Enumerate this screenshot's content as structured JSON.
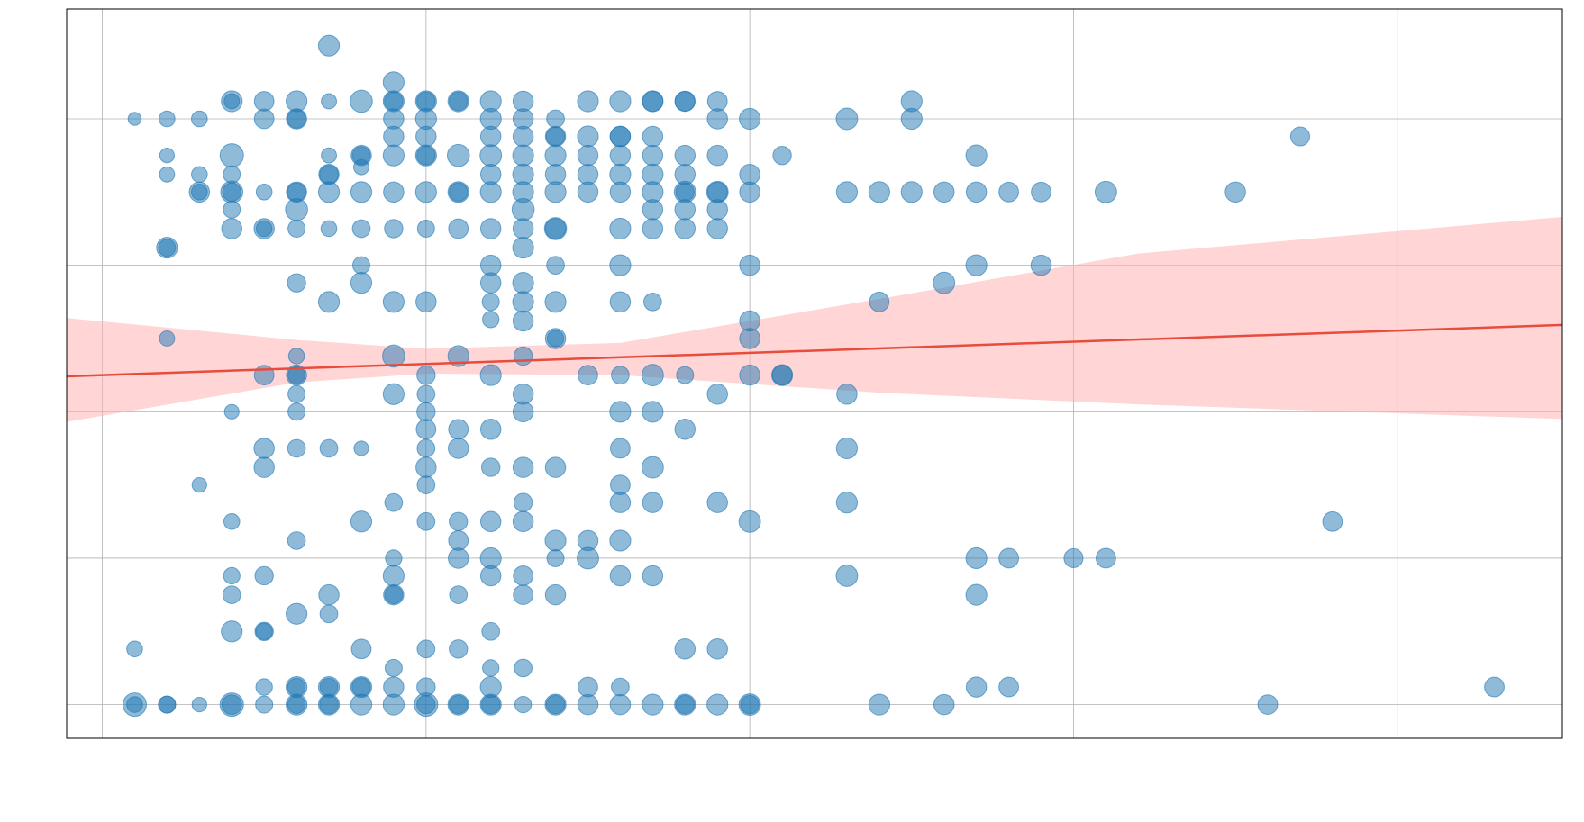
{
  "chart_data": {
    "type": "scatter",
    "title": "",
    "xlabel": "",
    "ylabel": "",
    "xlim": [
      -0.55,
      22.55
    ],
    "ylim": [
      -0.23,
      4.75
    ],
    "x_gridlines": [
      0,
      5,
      10,
      15,
      20
    ],
    "y_gridlines": [
      0,
      1,
      2,
      3,
      4
    ],
    "grid": true,
    "legend": "none",
    "colors": {
      "points": "#1f77b4",
      "point_outline": "#1f77b4",
      "regression_line": "#e74c3c",
      "confidence_band": "#ffb3b3",
      "overlap_point": "#4a6a9a"
    },
    "regression": {
      "intercept": 2.25,
      "slope": 0.0152,
      "band_lower": [
        [
          -0.55,
          1.93
        ],
        [
          3,
          2.2
        ],
        [
          5,
          2.26
        ],
        [
          8,
          2.25
        ],
        [
          12,
          2.13
        ],
        [
          16,
          2.05
        ],
        [
          22.55,
          1.95
        ]
      ],
      "band_upper": [
        [
          -0.55,
          2.64
        ],
        [
          3,
          2.49
        ],
        [
          5,
          2.43
        ],
        [
          8,
          2.47
        ],
        [
          12,
          2.77
        ],
        [
          16,
          3.08
        ],
        [
          22.55,
          3.33
        ]
      ]
    },
    "points": [
      [
        0.5,
        4.0,
        0.18
      ],
      [
        0.5,
        0.0,
        1.0
      ],
      [
        0.5,
        0.0,
        0.4
      ],
      [
        0.5,
        0.38,
        0.4
      ],
      [
        1.0,
        4.0,
        0.4
      ],
      [
        1.0,
        3.75,
        0.3
      ],
      [
        1.0,
        3.62,
        0.35
      ],
      [
        1.0,
        3.12,
        0.8
      ],
      [
        1.0,
        3.12,
        0.5
      ],
      [
        1.0,
        2.5,
        0.35
      ],
      [
        1.0,
        0.0,
        0.5
      ],
      [
        1.0,
        0.0,
        0.5
      ],
      [
        1.5,
        4.0,
        0.4
      ],
      [
        1.5,
        3.62,
        0.4
      ],
      [
        1.5,
        3.5,
        0.75
      ],
      [
        1.5,
        3.5,
        0.4
      ],
      [
        1.5,
        1.5,
        0.3
      ],
      [
        1.5,
        0.0,
        0.3
      ],
      [
        2.0,
        4.12,
        0.8
      ],
      [
        2.0,
        4.12,
        0.35
      ],
      [
        2.0,
        3.75,
        1.0
      ],
      [
        2.0,
        3.62,
        0.5
      ],
      [
        2.0,
        3.5,
        0.9
      ],
      [
        2.0,
        3.5,
        0.6
      ],
      [
        2.0,
        3.38,
        0.5
      ],
      [
        2.0,
        3.25,
        0.75
      ],
      [
        2.0,
        2.0,
        0.3
      ],
      [
        2.0,
        1.25,
        0.4
      ],
      [
        2.0,
        0.88,
        0.45
      ],
      [
        2.0,
        0.75,
        0.55
      ],
      [
        2.0,
        0.5,
        0.8
      ],
      [
        2.0,
        0.0,
        1.0
      ],
      [
        2.0,
        0.0,
        0.7
      ],
      [
        2.5,
        4.12,
        0.7
      ],
      [
        2.5,
        4.0,
        0.7
      ],
      [
        2.5,
        3.5,
        0.4
      ],
      [
        2.5,
        3.25,
        0.75
      ],
      [
        2.5,
        3.25,
        0.4
      ],
      [
        2.5,
        2.25,
        0.7
      ],
      [
        2.5,
        1.75,
        0.75
      ],
      [
        2.5,
        1.62,
        0.75
      ],
      [
        2.5,
        0.88,
        0.6
      ],
      [
        2.5,
        0.5,
        0.6
      ],
      [
        2.5,
        0.5,
        0.45
      ],
      [
        2.5,
        0.12,
        0.45
      ],
      [
        2.5,
        0.0,
        0.5
      ],
      [
        3.0,
        4.12,
        0.8
      ],
      [
        3.0,
        4.0,
        0.75
      ],
      [
        3.0,
        4.0,
        0.6
      ],
      [
        3.0,
        3.5,
        0.75
      ],
      [
        3.0,
        3.5,
        0.6
      ],
      [
        3.0,
        3.38,
        0.9
      ],
      [
        3.0,
        3.25,
        0.5
      ],
      [
        3.0,
        2.88,
        0.6
      ],
      [
        3.0,
        2.38,
        0.4
      ],
      [
        3.0,
        2.25,
        0.75
      ],
      [
        3.0,
        2.25,
        0.5
      ],
      [
        3.0,
        2.12,
        0.5
      ],
      [
        3.0,
        2.0,
        0.5
      ],
      [
        3.0,
        1.75,
        0.55
      ],
      [
        3.0,
        1.12,
        0.55
      ],
      [
        3.0,
        0.62,
        0.8
      ],
      [
        3.0,
        0.12,
        0.8
      ],
      [
        3.0,
        0.12,
        0.55
      ],
      [
        3.0,
        0.0,
        0.8
      ],
      [
        3.0,
        0.0,
        0.55
      ],
      [
        3.5,
        4.5,
        0.8
      ],
      [
        3.5,
        4.12,
        0.35
      ],
      [
        3.5,
        3.62,
        0.75
      ],
      [
        3.5,
        3.62,
        0.6
      ],
      [
        3.5,
        3.75,
        0.35
      ],
      [
        3.5,
        3.5,
        0.8
      ],
      [
        3.5,
        3.25,
        0.4
      ],
      [
        3.5,
        2.75,
        0.8
      ],
      [
        3.5,
        1.75,
        0.55
      ],
      [
        3.5,
        0.75,
        0.75
      ],
      [
        3.5,
        0.62,
        0.55
      ],
      [
        3.5,
        0.12,
        0.8
      ],
      [
        3.5,
        0.12,
        0.55
      ],
      [
        3.5,
        0.0,
        0.8
      ],
      [
        3.5,
        0.0,
        0.6
      ],
      [
        4.0,
        4.12,
        0.9
      ],
      [
        4.0,
        3.75,
        0.75
      ],
      [
        4.0,
        3.75,
        0.55
      ],
      [
        4.0,
        3.67,
        0.35
      ],
      [
        4.0,
        3.5,
        0.8
      ],
      [
        4.0,
        3.25,
        0.55
      ],
      [
        4.0,
        3.0,
        0.5
      ],
      [
        4.0,
        2.88,
        0.8
      ],
      [
        4.0,
        1.75,
        0.3
      ],
      [
        4.0,
        1.25,
        0.8
      ],
      [
        4.0,
        0.38,
        0.7
      ],
      [
        4.0,
        0.12,
        0.8
      ],
      [
        4.0,
        0.12,
        0.6
      ],
      [
        4.0,
        0.0,
        0.8
      ],
      [
        4.5,
        4.25,
        0.8
      ],
      [
        4.5,
        4.12,
        0.8
      ],
      [
        4.5,
        4.12,
        0.6
      ],
      [
        4.5,
        4.0,
        0.75
      ],
      [
        4.5,
        3.88,
        0.75
      ],
      [
        4.5,
        3.75,
        0.8
      ],
      [
        4.5,
        3.5,
        0.75
      ],
      [
        4.5,
        3.25,
        0.6
      ],
      [
        4.5,
        2.75,
        0.8
      ],
      [
        4.5,
        2.38,
        0.9
      ],
      [
        4.5,
        2.12,
        0.8
      ],
      [
        4.5,
        1.38,
        0.55
      ],
      [
        4.5,
        1.0,
        0.45
      ],
      [
        4.5,
        0.88,
        0.8
      ],
      [
        4.5,
        0.75,
        0.75
      ],
      [
        4.5,
        0.75,
        0.55
      ],
      [
        4.5,
        0.25,
        0.5
      ],
      [
        4.5,
        0.12,
        0.75
      ],
      [
        4.5,
        0.0,
        0.8
      ],
      [
        5.0,
        4.12,
        0.8
      ],
      [
        5.0,
        4.12,
        0.6
      ],
      [
        5.0,
        4.0,
        0.8
      ],
      [
        5.0,
        3.88,
        0.75
      ],
      [
        5.0,
        3.75,
        0.8
      ],
      [
        5.0,
        3.75,
        0.6
      ],
      [
        5.0,
        3.5,
        0.8
      ],
      [
        5.0,
        3.25,
        0.5
      ],
      [
        5.0,
        2.75,
        0.75
      ],
      [
        5.0,
        2.25,
        0.6
      ],
      [
        5.0,
        2.12,
        0.55
      ],
      [
        5.0,
        2.0,
        0.6
      ],
      [
        5.0,
        1.88,
        0.7
      ],
      [
        5.0,
        1.75,
        0.55
      ],
      [
        5.0,
        1.62,
        0.75
      ],
      [
        5.0,
        1.5,
        0.55
      ],
      [
        5.0,
        1.25,
        0.55
      ],
      [
        5.0,
        0.38,
        0.55
      ],
      [
        5.0,
        0.12,
        0.6
      ],
      [
        5.0,
        0.0,
        1.0
      ],
      [
        5.0,
        0.0,
        0.6
      ],
      [
        5.5,
        4.12,
        0.8
      ],
      [
        5.5,
        4.12,
        0.6
      ],
      [
        5.5,
        3.75,
        0.9
      ],
      [
        5.5,
        3.5,
        0.8
      ],
      [
        5.5,
        3.5,
        0.6
      ],
      [
        5.5,
        3.25,
        0.7
      ],
      [
        5.5,
        2.38,
        0.8
      ],
      [
        5.5,
        1.88,
        0.7
      ],
      [
        5.5,
        1.75,
        0.75
      ],
      [
        5.5,
        1.25,
        0.6
      ],
      [
        5.5,
        1.12,
        0.7
      ],
      [
        5.5,
        1.0,
        0.75
      ],
      [
        5.5,
        0.75,
        0.55
      ],
      [
        5.5,
        0.38,
        0.6
      ],
      [
        5.5,
        0.0,
        0.8
      ],
      [
        5.5,
        0.0,
        0.6
      ],
      [
        6.0,
        4.12,
        0.8
      ],
      [
        6.0,
        4.0,
        0.8
      ],
      [
        6.0,
        3.88,
        0.75
      ],
      [
        6.0,
        3.75,
        0.85
      ],
      [
        6.0,
        3.62,
        0.75
      ],
      [
        6.0,
        3.5,
        0.8
      ],
      [
        6.0,
        3.25,
        0.75
      ],
      [
        6.0,
        3.0,
        0.75
      ],
      [
        6.0,
        2.75,
        0.5
      ],
      [
        6.0,
        2.63,
        0.45
      ],
      [
        6.0,
        2.88,
        0.75
      ],
      [
        6.0,
        2.25,
        0.8
      ],
      [
        6.0,
        1.88,
        0.75
      ],
      [
        6.0,
        1.62,
        0.6
      ],
      [
        6.0,
        1.25,
        0.75
      ],
      [
        6.0,
        1.0,
        0.8
      ],
      [
        6.0,
        0.88,
        0.75
      ],
      [
        6.0,
        0.5,
        0.55
      ],
      [
        6.0,
        0.25,
        0.45
      ],
      [
        6.0,
        0.12,
        0.8
      ],
      [
        6.0,
        0.0,
        0.8
      ],
      [
        6.0,
        0.0,
        0.6
      ],
      [
        6.5,
        4.12,
        0.75
      ],
      [
        6.5,
        4.0,
        0.75
      ],
      [
        6.5,
        3.88,
        0.75
      ],
      [
        6.5,
        3.75,
        0.8
      ],
      [
        6.5,
        3.62,
        0.8
      ],
      [
        6.5,
        3.5,
        0.8
      ],
      [
        6.5,
        3.38,
        0.9
      ],
      [
        6.5,
        3.25,
        0.75
      ],
      [
        6.5,
        3.12,
        0.8
      ],
      [
        6.5,
        2.88,
        0.8
      ],
      [
        6.5,
        2.75,
        0.8
      ],
      [
        6.5,
        2.62,
        0.75
      ],
      [
        6.5,
        2.38,
        0.6
      ],
      [
        6.5,
        2.12,
        0.75
      ],
      [
        6.5,
        2.0,
        0.75
      ],
      [
        6.5,
        1.62,
        0.75
      ],
      [
        6.5,
        1.38,
        0.6
      ],
      [
        6.5,
        1.25,
        0.75
      ],
      [
        6.5,
        0.88,
        0.7
      ],
      [
        6.5,
        0.75,
        0.7
      ],
      [
        6.5,
        0.25,
        0.55
      ],
      [
        6.5,
        0.0,
        0.45
      ],
      [
        7.0,
        4.0,
        0.55
      ],
      [
        7.0,
        3.88,
        0.6
      ],
      [
        7.0,
        3.88,
        0.75
      ],
      [
        7.0,
        3.75,
        0.8
      ],
      [
        7.0,
        3.62,
        0.75
      ],
      [
        7.0,
        3.5,
        0.8
      ],
      [
        7.0,
        3.25,
        0.9
      ],
      [
        7.0,
        3.25,
        0.75
      ],
      [
        7.0,
        3.0,
        0.55
      ],
      [
        7.0,
        2.5,
        0.45
      ],
      [
        7.0,
        2.5,
        0.75
      ],
      [
        7.0,
        2.75,
        0.8
      ],
      [
        7.0,
        1.62,
        0.75
      ],
      [
        7.0,
        1.12,
        0.8
      ],
      [
        7.0,
        1.0,
        0.5
      ],
      [
        7.0,
        0.75,
        0.75
      ],
      [
        7.0,
        0.0,
        0.8
      ],
      [
        7.0,
        0.0,
        0.6
      ],
      [
        7.5,
        4.12,
        0.8
      ],
      [
        7.5,
        3.88,
        0.8
      ],
      [
        7.5,
        3.75,
        0.75
      ],
      [
        7.5,
        3.62,
        0.75
      ],
      [
        7.5,
        3.5,
        0.75
      ],
      [
        7.5,
        2.25,
        0.7
      ],
      [
        7.5,
        1.12,
        0.75
      ],
      [
        7.5,
        1.0,
        0.85
      ],
      [
        7.5,
        0.12,
        0.7
      ],
      [
        7.5,
        0.0,
        0.75
      ],
      [
        8.0,
        4.12,
        0.8
      ],
      [
        8.0,
        3.88,
        0.75
      ],
      [
        8.0,
        3.88,
        0.75
      ],
      [
        8.0,
        3.75,
        0.75
      ],
      [
        8.0,
        3.62,
        0.8
      ],
      [
        8.0,
        3.5,
        0.75
      ],
      [
        8.0,
        3.25,
        0.8
      ],
      [
        8.0,
        3.0,
        0.8
      ],
      [
        8.0,
        2.75,
        0.75
      ],
      [
        8.0,
        2.25,
        0.55
      ],
      [
        8.0,
        2.0,
        0.8
      ],
      [
        8.0,
        1.75,
        0.7
      ],
      [
        8.0,
        1.5,
        0.7
      ],
      [
        8.0,
        1.38,
        0.75
      ],
      [
        8.0,
        1.12,
        0.8
      ],
      [
        8.0,
        0.88,
        0.75
      ],
      [
        8.0,
        0.12,
        0.55
      ],
      [
        8.0,
        0.0,
        0.75
      ],
      [
        8.5,
        4.12,
        0.75
      ],
      [
        8.5,
        4.12,
        0.8
      ],
      [
        8.5,
        3.88,
        0.75
      ],
      [
        8.5,
        3.75,
        0.75
      ],
      [
        8.5,
        3.62,
        0.8
      ],
      [
        8.5,
        3.5,
        0.8
      ],
      [
        8.5,
        3.38,
        0.75
      ],
      [
        8.5,
        3.25,
        0.75
      ],
      [
        8.5,
        2.75,
        0.55
      ],
      [
        8.5,
        2.25,
        0.85
      ],
      [
        8.5,
        2.0,
        0.8
      ],
      [
        8.5,
        1.62,
        0.85
      ],
      [
        8.5,
        1.38,
        0.75
      ],
      [
        8.5,
        0.88,
        0.75
      ],
      [
        8.5,
        0.0,
        0.8
      ],
      [
        9.0,
        4.12,
        0.75
      ],
      [
        9.0,
        4.12,
        0.7
      ],
      [
        9.0,
        3.75,
        0.75
      ],
      [
        9.0,
        3.62,
        0.75
      ],
      [
        9.0,
        3.5,
        0.85
      ],
      [
        9.0,
        3.5,
        0.6
      ],
      [
        9.0,
        3.38,
        0.75
      ],
      [
        9.0,
        3.25,
        0.75
      ],
      [
        9.0,
        2.25,
        0.5
      ],
      [
        9.0,
        1.88,
        0.75
      ],
      [
        9.0,
        0.38,
        0.75
      ],
      [
        9.0,
        0.0,
        0.8
      ],
      [
        9.0,
        0.0,
        0.6
      ],
      [
        9.5,
        4.12,
        0.7
      ],
      [
        9.5,
        4.0,
        0.75
      ],
      [
        9.5,
        3.75,
        0.75
      ],
      [
        9.5,
        3.5,
        0.85
      ],
      [
        9.5,
        3.5,
        0.7
      ],
      [
        9.5,
        3.38,
        0.75
      ],
      [
        9.5,
        3.25,
        0.75
      ],
      [
        9.5,
        2.12,
        0.75
      ],
      [
        9.5,
        1.38,
        0.75
      ],
      [
        9.5,
        0.38,
        0.75
      ],
      [
        9.5,
        0.0,
        0.8
      ],
      [
        10.0,
        4.0,
        0.8
      ],
      [
        10.0,
        3.62,
        0.75
      ],
      [
        10.0,
        3.5,
        0.75
      ],
      [
        10.0,
        3.0,
        0.75
      ],
      [
        10.0,
        2.62,
        0.75
      ],
      [
        10.0,
        2.5,
        0.75
      ],
      [
        10.0,
        2.25,
        0.75
      ],
      [
        10.0,
        1.25,
        0.85
      ],
      [
        10.0,
        0.0,
        0.85
      ],
      [
        10.0,
        0.0,
        0.6
      ],
      [
        10.5,
        3.75,
        0.6
      ],
      [
        10.5,
        2.25,
        0.8
      ],
      [
        10.5,
        2.25,
        0.7
      ],
      [
        11.5,
        4.0,
        0.85
      ],
      [
        11.5,
        3.5,
        0.8
      ],
      [
        11.5,
        2.12,
        0.75
      ],
      [
        11.5,
        1.38,
        0.8
      ],
      [
        11.5,
        1.75,
        0.8
      ],
      [
        11.5,
        0.88,
        0.85
      ],
      [
        12.0,
        3.5,
        0.8
      ],
      [
        12.0,
        2.75,
        0.7
      ],
      [
        12.0,
        0.0,
        0.8
      ],
      [
        12.5,
        4.12,
        0.8
      ],
      [
        12.5,
        4.0,
        0.8
      ],
      [
        12.5,
        3.5,
        0.8
      ],
      [
        13.0,
        3.5,
        0.75
      ],
      [
        13.0,
        2.88,
        0.85
      ],
      [
        13.0,
        0.0,
        0.75
      ],
      [
        13.5,
        3.75,
        0.8
      ],
      [
        13.5,
        3.5,
        0.75
      ],
      [
        13.5,
        3.0,
        0.8
      ],
      [
        13.5,
        1.0,
        0.8
      ],
      [
        13.5,
        0.75,
        0.8
      ],
      [
        13.5,
        0.12,
        0.75
      ],
      [
        14.0,
        3.5,
        0.7
      ],
      [
        14.0,
        1.0,
        0.7
      ],
      [
        14.0,
        0.12,
        0.7
      ],
      [
        14.5,
        3.5,
        0.7
      ],
      [
        14.5,
        3.0,
        0.75
      ],
      [
        15.0,
        1.0,
        0.65
      ],
      [
        15.5,
        3.5,
        0.85
      ],
      [
        15.5,
        1.0,
        0.7
      ],
      [
        17.5,
        3.5,
        0.75
      ],
      [
        18.0,
        0.0,
        0.7
      ],
      [
        18.5,
        3.88,
        0.65
      ],
      [
        19.0,
        1.25,
        0.7
      ],
      [
        21.5,
        0.12,
        0.7
      ]
    ]
  }
}
